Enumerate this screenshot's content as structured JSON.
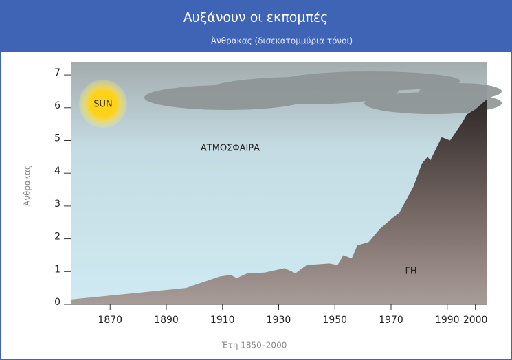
{
  "chart_data": {
    "type": "area",
    "title": "Αυξάνουν οι εκπομπές",
    "subtitle": "Άνθρακας (δισεκατομμύρια τόνοι)",
    "y_label": "Άνθρακας",
    "x_label": "Έτη 1850–2000",
    "annotations": [
      "SUN",
      "ΑΤΜΟΣΦΑΙΡΑ",
      "ΓΗ"
    ],
    "x": [
      1856,
      1897,
      1909,
      1913,
      1915,
      1919,
      1925,
      1932,
      1936,
      1940,
      1948,
      1951,
      1953,
      1956,
      1958,
      1962,
      1966,
      1970,
      1973,
      1978,
      1981,
      1983,
      1984,
      1988,
      1991,
      1995,
      1997,
      2000,
      2004
    ],
    "values": [
      0.15,
      0.5,
      0.85,
      0.9,
      0.8,
      0.95,
      0.97,
      1.1,
      0.95,
      1.2,
      1.25,
      1.2,
      1.5,
      1.4,
      1.8,
      1.9,
      2.3,
      2.6,
      2.8,
      3.6,
      4.3,
      4.5,
      4.4,
      5.1,
      5.0,
      5.5,
      5.8,
      5.95,
      6.25
    ],
    "color": "#4a3f3d",
    "xlim": [
      1856,
      2004
    ],
    "xticks": [
      1870,
      1890,
      1910,
      1930,
      1950,
      1970,
      1990,
      2000
    ],
    "ylim": [
      0,
      7.4
    ],
    "yticks": [
      0,
      1,
      2,
      3,
      4,
      5,
      6,
      7
    ]
  }
}
